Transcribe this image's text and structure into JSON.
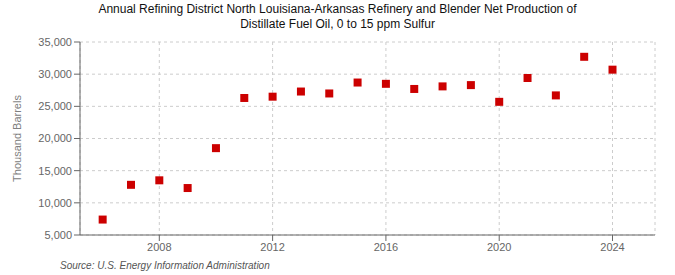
{
  "chart_data": {
    "type": "scatter",
    "title": "Annual Refining District North Louisiana-Arkansas Refinery and Blender Net Production of\nDistillate Fuel Oil, 0 to 15 ppm Sulfur",
    "y_label": "Thousand Barrels",
    "source": "Source: U.S. Energy Information Administration",
    "x": [
      2006,
      2007,
      2008,
      2009,
      2010,
      2011,
      2012,
      2013,
      2014,
      2015,
      2016,
      2017,
      2018,
      2019,
      2020,
      2021,
      2022,
      2023,
      2024
    ],
    "values": [
      7400,
      12800,
      13500,
      12300,
      18500,
      26300,
      26500,
      27300,
      27000,
      28700,
      28500,
      27700,
      28100,
      28300,
      25700,
      29400,
      26700,
      32700,
      30700
    ],
    "color": "#cc0000",
    "marker": "square",
    "xlim": [
      2005.2,
      2025.5
    ],
    "xticks": [
      2008,
      2012,
      2016,
      2020,
      2024
    ],
    "ylim": [
      5000,
      35000
    ],
    "yticks": [
      {
        "value": 5000,
        "label": "5,000"
      },
      {
        "value": 10000,
        "label": "10,000"
      },
      {
        "value": 15000,
        "label": "15,000"
      },
      {
        "value": 20000,
        "label": "20,000"
      },
      {
        "value": 25000,
        "label": "25,000"
      },
      {
        "value": 30000,
        "label": "30,000"
      },
      {
        "value": 35000,
        "label": "35,000"
      }
    ],
    "grid": true
  }
}
